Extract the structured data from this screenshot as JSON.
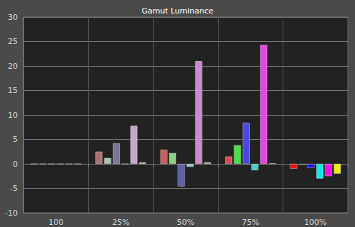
{
  "chart_data": {
    "type": "bar",
    "title": "Gamut Luminance",
    "categories": [
      "100",
      "25%",
      "50%",
      "75%",
      "100%"
    ],
    "series": [
      {
        "colors": [
          "#ff0000",
          "#a87070",
          "#c86060",
          "#e04848",
          "#ee1010"
        ],
        "values": [
          0,
          2.5,
          2.9,
          1.5,
          -1.0
        ]
      },
      {
        "colors": [
          "#00ff00",
          "#a8c8a8",
          "#88d088",
          "#48e048",
          "#10ee10"
        ],
        "values": [
          0,
          1.2,
          2.2,
          3.8,
          -0.1
        ]
      },
      {
        "colors": [
          "#0000ff",
          "#787898",
          "#6060a8",
          "#4848e0",
          "#1010ee"
        ],
        "values": [
          0,
          4.2,
          -4.6,
          8.4,
          -0.8
        ]
      },
      {
        "colors": [
          "#00ffff",
          "#a8c8c8",
          "#88c8c8",
          "#48d0d0",
          "#10e8e8"
        ],
        "values": [
          0,
          0,
          -0.6,
          -1.3,
          -3.0
        ]
      },
      {
        "colors": [
          "#ff00ff",
          "#c8a8c8",
          "#d088d0",
          "#e048e0",
          "#ee10ee"
        ],
        "values": [
          0,
          7.8,
          21.0,
          24.3,
          -2.5
        ]
      },
      {
        "colors": [
          "#ffff00",
          "#d8d8a8",
          "#e0e088",
          "#e0e048",
          "#eeee10"
        ],
        "values": [
          0,
          0.3,
          0.3,
          0.1,
          -2.0
        ]
      }
    ],
    "ylim": [
      -10,
      30
    ],
    "yticks": [
      -10,
      -5,
      0,
      5,
      10,
      15,
      20,
      25,
      30
    ],
    "grid": true
  }
}
